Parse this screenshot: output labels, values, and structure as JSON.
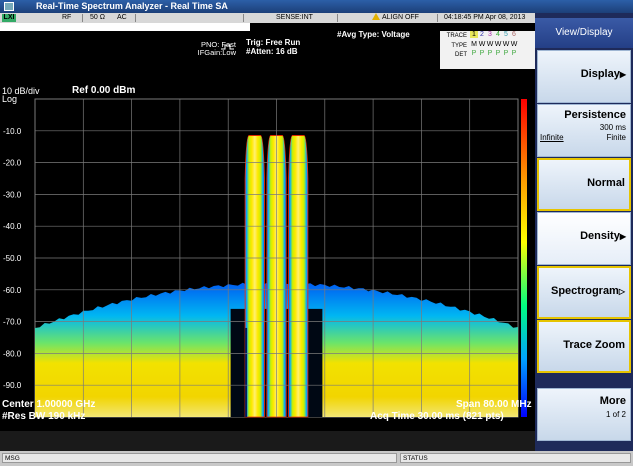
{
  "window": {
    "title": "Real-Time Spectrum Analyzer - Real Time SA"
  },
  "infobar": {
    "logo": "LXI",
    "rf": "RF",
    "impedance": "50 Ω",
    "coupling": "AC",
    "sense": "SENSE:INT",
    "align": "ALIGN OFF",
    "datetime": "04:18:45 PM Apr 08, 2013",
    "pno": "PNO: Fast",
    "ifgain": "IFGain:Low",
    "trig": "Trig: Free Run",
    "atten": "#Atten: 16 dB",
    "avg_type": "#Avg Type: Voltage",
    "trace_label": "TRACE",
    "type_label": "TYPE",
    "det_label": "DET",
    "trace_nums": [
      "1",
      "2",
      "3",
      "4",
      "5",
      "6"
    ],
    "type_vals": [
      "M",
      "W",
      "W",
      "W",
      "W",
      "W"
    ],
    "det_vals": [
      "P",
      "P",
      "P",
      "P",
      "P",
      "P"
    ]
  },
  "display": {
    "scale_div": "10 dB/div",
    "log_label": "Log",
    "ref_level": "Ref 0.00 dBm",
    "y_ticks": [
      "-10.0",
      "-20.0",
      "-30.0",
      "-40.0",
      "-50.0",
      "-60.0",
      "-70.0",
      "-80.0",
      "-90.0"
    ],
    "center": "Center 1.00000 GHz",
    "res_bw": "#Res BW 190 kHz",
    "span": "Span 80.00 MHz",
    "acq_time": "Acq Time  30.00 ms (821 pts)"
  },
  "softkeys": {
    "title": "View/Display",
    "display": "Display",
    "persistence": "Persistence",
    "persistence_value": "300 ms",
    "persistence_opt_a": "Infinite",
    "persistence_opt_b": "Finite",
    "normal": "Normal",
    "density": "Density",
    "spectrogram": "Spectrogram",
    "trace_zoom": "Trace Zoom",
    "more": "More",
    "more_page": "1 of 2"
  },
  "status": {
    "msg": "MSG",
    "status": "STATUS"
  },
  "colors": {
    "trace_red": "#ff2000",
    "trace_yellow": "#ffff00",
    "trace_blue": "#00a0ff",
    "grid": "#7a7a7a"
  }
}
